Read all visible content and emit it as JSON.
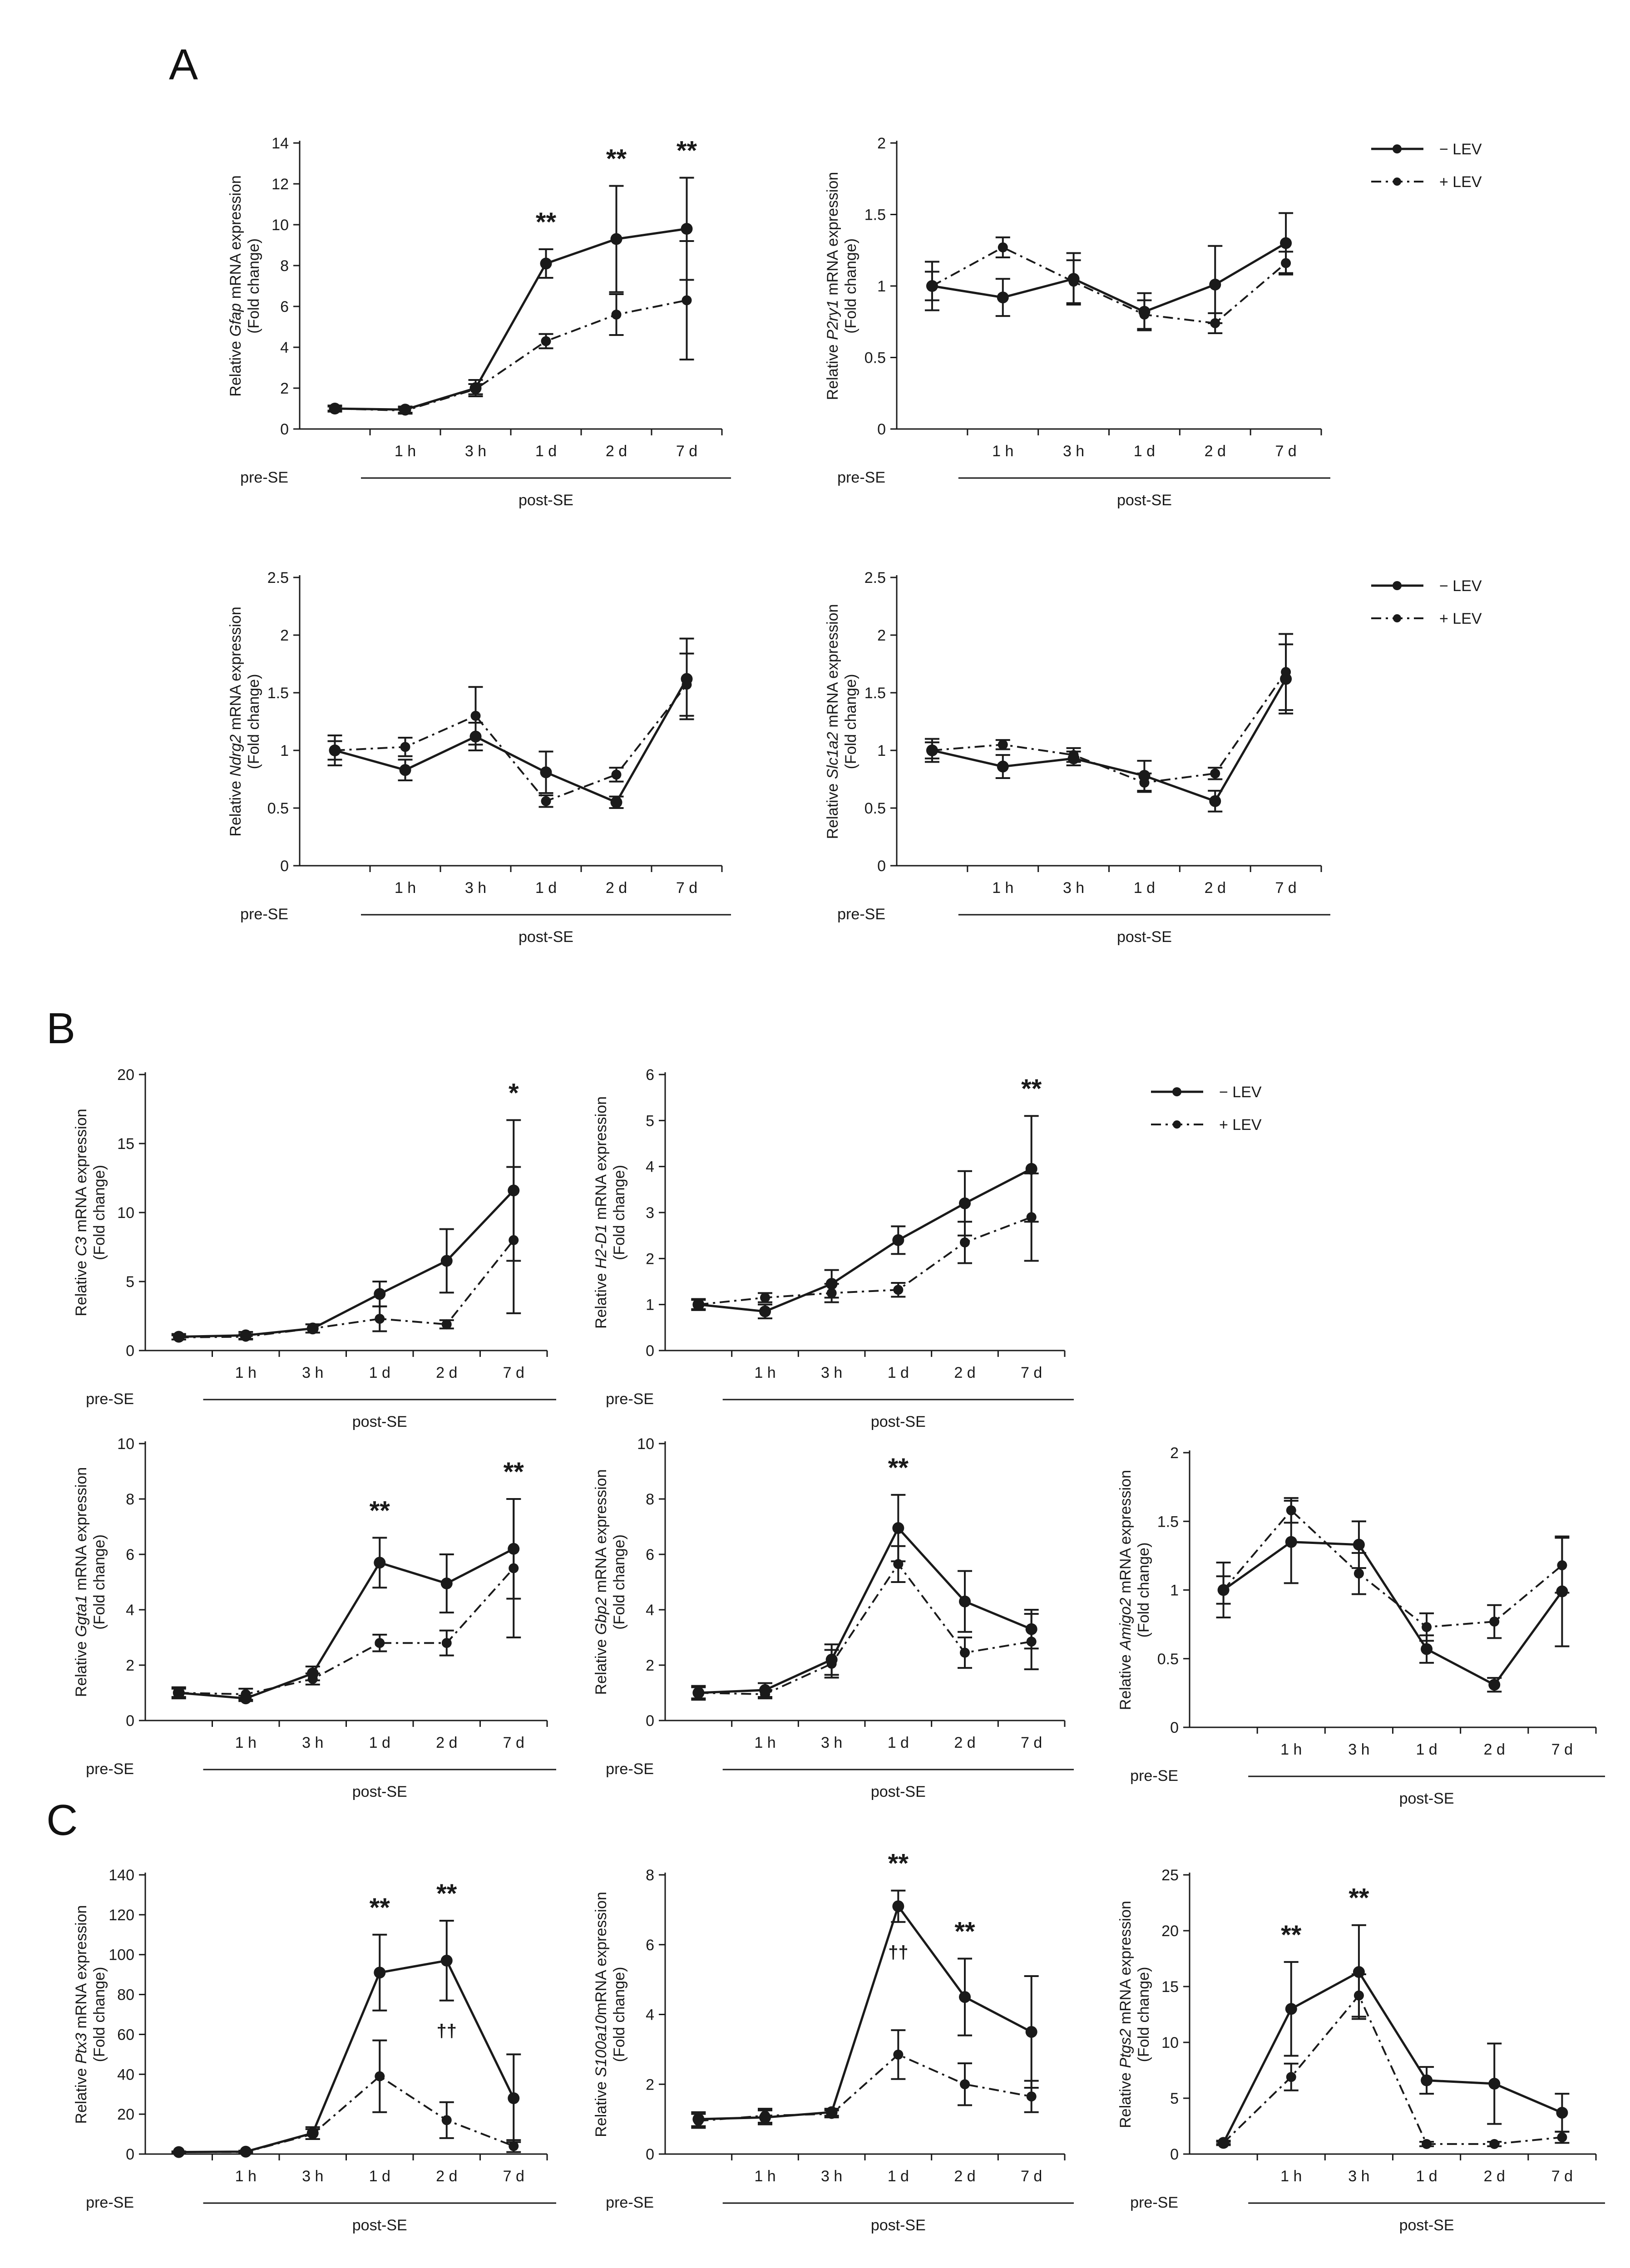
{
  "figure": {
    "panel_labels": [
      "A",
      "B",
      "C"
    ],
    "legend": {
      "minus": "− LEV",
      "plus": "+ LEV"
    },
    "colors": {
      "minus": "#1a1a1a",
      "plus": "#1a1a1a"
    }
  },
  "chart_data": [
    {
      "id": "gfap",
      "panel": "A",
      "type": "line",
      "gene": "Gfap",
      "ylabel_pre": "Relative ",
      "ylabel_post": " mRNA expression",
      "ylabel2": "(Fold change)",
      "categories": [
        "pre-SE",
        "1 h",
        "3 h",
        "1 d",
        "2 d",
        "7 d"
      ],
      "group_label_pre": "pre-SE",
      "group_label_post": "post-SE",
      "ylim": [
        0,
        14
      ],
      "yticks": [
        0,
        2,
        4,
        6,
        8,
        10,
        12,
        14
      ],
      "series": [
        {
          "name": "− LEV",
          "values": [
            1.0,
            0.95,
            2.0,
            8.1,
            9.3,
            9.8
          ],
          "errors": [
            0.15,
            0.15,
            0.4,
            0.7,
            2.6,
            2.5
          ]
        },
        {
          "name": "+ LEV",
          "values": [
            1.0,
            0.9,
            1.95,
            4.3,
            5.6,
            6.3
          ],
          "errors": [
            0.1,
            0.15,
            0.25,
            0.35,
            1.0,
            2.9
          ]
        }
      ],
      "annotations": [
        {
          "index": 3,
          "text": "**"
        },
        {
          "index": 4,
          "text": "**"
        },
        {
          "index": 5,
          "text": "**"
        }
      ]
    },
    {
      "id": "p2ry1",
      "panel": "A",
      "type": "line",
      "gene": "P2ry1",
      "ylabel_pre": "Relative ",
      "ylabel_post": " mRNA expression",
      "ylabel2": "(Fold change)",
      "categories": [
        "pre-SE",
        "1 h",
        "3 h",
        "1 d",
        "2 d",
        "7 d"
      ],
      "group_label_pre": "pre-SE",
      "group_label_post": "post-SE",
      "ylim": [
        0,
        2
      ],
      "yticks": [
        0,
        0.5,
        1,
        1.5,
        2
      ],
      "series": [
        {
          "name": "− LEV",
          "values": [
            1.0,
            0.92,
            1.05,
            0.82,
            1.01,
            1.3
          ],
          "errors": [
            0.17,
            0.13,
            0.18,
            0.13,
            0.27,
            0.21
          ]
        },
        {
          "name": "+ LEV",
          "values": [
            1.0,
            1.27,
            1.03,
            0.8,
            0.74,
            1.16
          ],
          "errors": [
            0.1,
            0.07,
            0.15,
            0.1,
            0.07,
            0.08
          ]
        }
      ],
      "annotations": []
    },
    {
      "id": "ndrg2",
      "panel": "A",
      "type": "line",
      "gene": "Ndrg2",
      "ylabel_pre": "Relative ",
      "ylabel_post": " mRNA expression",
      "ylabel2": "(Fold change)",
      "categories": [
        "pre-SE",
        "1 h",
        "3 h",
        "1 d",
        "2 d",
        "7 d"
      ],
      "group_label_pre": "pre-SE",
      "group_label_post": "post-SE",
      "ylim": [
        0,
        2.5
      ],
      "yticks": [
        0,
        0.5,
        1,
        1.5,
        2,
        2.5
      ],
      "series": [
        {
          "name": "− LEV",
          "values": [
            1.0,
            0.83,
            1.12,
            0.81,
            0.55,
            1.62
          ],
          "errors": [
            0.13,
            0.09,
            0.12,
            0.18,
            0.05,
            0.35
          ]
        },
        {
          "name": "+ LEV",
          "values": [
            1.0,
            1.03,
            1.3,
            0.56,
            0.79,
            1.57
          ],
          "errors": [
            0.08,
            0.08,
            0.25,
            0.05,
            0.06,
            0.27
          ]
        }
      ],
      "annotations": []
    },
    {
      "id": "slc1a2",
      "panel": "A",
      "type": "line",
      "gene": "Slc1a2",
      "ylabel_pre": "Relative ",
      "ylabel_post": " mRNA expression",
      "ylabel2": "(Fold change)",
      "categories": [
        "pre-SE",
        "1 h",
        "3 h",
        "1 d",
        "2 d",
        "7 d"
      ],
      "group_label_pre": "pre-SE",
      "group_label_post": "post-SE",
      "ylim": [
        0,
        2.5
      ],
      "yticks": [
        0,
        0.5,
        1,
        1.5,
        2,
        2.5
      ],
      "series": [
        {
          "name": "− LEV",
          "values": [
            1.0,
            0.86,
            0.93,
            0.78,
            0.56,
            1.62
          ],
          "errors": [
            0.1,
            0.1,
            0.06,
            0.13,
            0.09,
            0.3
          ]
        },
        {
          "name": "+ LEV",
          "values": [
            1.0,
            1.05,
            0.96,
            0.72,
            0.8,
            1.68
          ],
          "errors": [
            0.07,
            0.04,
            0.06,
            0.08,
            0.05,
            0.33
          ]
        }
      ],
      "annotations": []
    },
    {
      "id": "c3",
      "panel": "B",
      "type": "line",
      "gene": "C3",
      "ylabel_pre": "Relative ",
      "ylabel_post": " mRNA expression",
      "ylabel2": "(Fold change)",
      "categories": [
        "pre-SE",
        "1 h",
        "3 h",
        "1 d",
        "2 d",
        "7 d"
      ],
      "group_label_pre": "pre-SE",
      "group_label_post": "post-SE",
      "ylim": [
        0,
        20
      ],
      "yticks": [
        0,
        5,
        10,
        15,
        20
      ],
      "series": [
        {
          "name": "− LEV",
          "values": [
            1.0,
            1.1,
            1.6,
            4.1,
            6.5,
            11.6
          ],
          "errors": [
            0.2,
            0.25,
            0.3,
            0.9,
            2.3,
            5.1
          ]
        },
        {
          "name": "+ LEV",
          "values": [
            0.95,
            1.0,
            1.6,
            2.3,
            1.9,
            8.0
          ],
          "errors": [
            0.15,
            0.2,
            0.3,
            0.9,
            0.3,
            5.3
          ]
        }
      ],
      "annotations": [
        {
          "index": 5,
          "text": "*"
        }
      ]
    },
    {
      "id": "h2d1",
      "panel": "B",
      "type": "line",
      "gene": "H2-D1",
      "ylabel_pre": "Relative ",
      "ylabel_post": " mRNA expression",
      "ylabel2": "(Fold change)",
      "categories": [
        "pre-SE",
        "1 h",
        "3 h",
        "1 d",
        "2 d",
        "7 d"
      ],
      "group_label_pre": "pre-SE",
      "group_label_post": "post-SE",
      "ylim": [
        0,
        6
      ],
      "yticks": [
        0,
        1,
        2,
        3,
        4,
        5,
        6
      ],
      "series": [
        {
          "name": "− LEV",
          "values": [
            1.0,
            0.85,
            1.45,
            2.4,
            3.2,
            3.95
          ],
          "errors": [
            0.12,
            0.15,
            0.3,
            0.3,
            0.7,
            1.15
          ]
        },
        {
          "name": "+ LEV",
          "values": [
            1.0,
            1.15,
            1.25,
            1.32,
            2.35,
            2.9
          ],
          "errors": [
            0.1,
            0.1,
            0.2,
            0.15,
            0.45,
            0.95
          ]
        }
      ],
      "annotations": [
        {
          "index": 5,
          "text": "**"
        }
      ]
    },
    {
      "id": "ggta1",
      "panel": "B",
      "type": "line",
      "gene": "Ggta1",
      "ylabel_pre": "Relative ",
      "ylabel_post": " mRNA expression",
      "ylabel2": "(Fold change)",
      "categories": [
        "pre-SE",
        "1 h",
        "3 h",
        "1 d",
        "2 d",
        "7 d"
      ],
      "group_label_pre": "pre-SE",
      "group_label_post": "post-SE",
      "ylim": [
        0,
        10
      ],
      "yticks": [
        0,
        2,
        4,
        6,
        8,
        10
      ],
      "series": [
        {
          "name": "− LEV",
          "values": [
            1.0,
            0.8,
            1.7,
            5.7,
            4.95,
            6.2
          ],
          "errors": [
            0.2,
            0.1,
            0.25,
            0.9,
            1.05,
            1.8
          ]
        },
        {
          "name": "+ LEV",
          "values": [
            1.0,
            0.95,
            1.5,
            2.8,
            2.8,
            5.5
          ],
          "errors": [
            0.15,
            0.2,
            0.2,
            0.3,
            0.45,
            2.5
          ]
        }
      ],
      "annotations": [
        {
          "index": 3,
          "text": "**"
        },
        {
          "index": 5,
          "text": "**"
        }
      ]
    },
    {
      "id": "gbp2",
      "panel": "B",
      "type": "line",
      "gene": "Gbp2",
      "ylabel_pre": "Relative ",
      "ylabel_post": " mRNA expression",
      "ylabel2": "(Fold change)",
      "categories": [
        "pre-SE",
        "1 h",
        "3 h",
        "1 d",
        "2 d",
        "7 d"
      ],
      "group_label_pre": "pre-SE",
      "group_label_post": "post-SE",
      "ylim": [
        0,
        10
      ],
      "yticks": [
        0,
        2,
        4,
        6,
        8,
        10
      ],
      "series": [
        {
          "name": "− LEV",
          "values": [
            1.0,
            1.1,
            2.2,
            6.95,
            4.3,
            3.3
          ],
          "errors": [
            0.25,
            0.25,
            0.55,
            1.2,
            1.1,
            0.7
          ]
        },
        {
          "name": "+ LEV",
          "values": [
            1.0,
            0.95,
            2.05,
            5.65,
            2.45,
            2.85
          ],
          "errors": [
            0.2,
            0.15,
            0.5,
            0.65,
            0.55,
            1.0
          ]
        }
      ],
      "annotations": [
        {
          "index": 3,
          "text": "**"
        }
      ]
    },
    {
      "id": "amigo2",
      "panel": "B",
      "type": "line",
      "gene": "Amigo2",
      "ylabel_pre": "Relative ",
      "ylabel_post": " mRNA expression",
      "ylabel2": "(Fold change)",
      "categories": [
        "pre-SE",
        "1 h",
        "3 h",
        "1 d",
        "2 d",
        "7 d"
      ],
      "group_label_pre": "pre-SE",
      "group_label_post": "post-SE",
      "ylim": [
        0,
        2
      ],
      "yticks": [
        0,
        0.5,
        1,
        1.5,
        2
      ],
      "series": [
        {
          "name": "− LEV",
          "values": [
            1.0,
            1.35,
            1.33,
            0.57,
            0.31,
            0.99
          ],
          "errors": [
            0.2,
            0.3,
            0.17,
            0.1,
            0.05,
            0.4
          ]
        },
        {
          "name": "+ LEV",
          "values": [
            1.0,
            1.58,
            1.12,
            0.73,
            0.77,
            1.18
          ],
          "errors": [
            0.1,
            0.09,
            0.15,
            0.1,
            0.12,
            0.2
          ]
        }
      ],
      "annotations": []
    },
    {
      "id": "ptx3",
      "panel": "C",
      "type": "line",
      "gene": "Ptx3",
      "ylabel_pre": "Relative ",
      "ylabel_post": " mRNA expression",
      "ylabel2": "(Fold change)",
      "categories": [
        "pre-SE",
        "1 h",
        "3 h",
        "1 d",
        "2 d",
        "7 d"
      ],
      "group_label_pre": "pre-SE",
      "group_label_post": "post-SE",
      "ylim": [
        0,
        140
      ],
      "yticks": [
        0,
        20,
        40,
        60,
        80,
        100,
        120,
        140
      ],
      "series": [
        {
          "name": "− LEV",
          "values": [
            1.0,
            1.2,
            10.5,
            91,
            97,
            28
          ],
          "errors": [
            0.3,
            0.5,
            3.0,
            19,
            20,
            22
          ]
        },
        {
          "name": "+ LEV",
          "values": [
            1.0,
            1.0,
            10.0,
            39,
            17,
            4
          ],
          "errors": [
            0.3,
            0.4,
            2.5,
            18,
            9,
            3
          ]
        }
      ],
      "annotations": [
        {
          "index": 3,
          "text": "**"
        },
        {
          "index": 4,
          "text": "**"
        },
        {
          "index": 4,
          "text": "††",
          "position": "below"
        }
      ]
    },
    {
      "id": "s100a10",
      "panel": "C",
      "type": "line",
      "gene": "S100a10",
      "ylabel_pre": "Relative ",
      "ylabel_post": "mRNA expression",
      "ylabel2": "(Fold change)",
      "categories": [
        "pre-SE",
        "1 h",
        "3 h",
        "1 d",
        "2 d",
        "7 d"
      ],
      "group_label_pre": "pre-SE",
      "group_label_post": "post-SE",
      "ylim": [
        0,
        8
      ],
      "yticks": [
        0,
        2,
        4,
        6,
        8
      ],
      "series": [
        {
          "name": "− LEV",
          "values": [
            1.0,
            1.05,
            1.2,
            7.1,
            4.5,
            3.5
          ],
          "errors": [
            0.2,
            0.2,
            0.1,
            0.45,
            1.1,
            1.6
          ]
        },
        {
          "name": "+ LEV",
          "values": [
            0.95,
            1.1,
            1.15,
            2.85,
            2.0,
            1.65
          ],
          "errors": [
            0.2,
            0.2,
            0.1,
            0.7,
            0.6,
            0.45
          ]
        }
      ],
      "annotations": [
        {
          "index": 3,
          "text": "**"
        },
        {
          "index": 4,
          "text": "**"
        },
        {
          "index": 3,
          "text": "††",
          "position": "below"
        }
      ]
    },
    {
      "id": "ptgs2",
      "panel": "C",
      "type": "line",
      "gene": "Ptgs2",
      "ylabel_pre": "Relative ",
      "ylabel_post": " mRNA expression",
      "ylabel2": "(Fold change)",
      "categories": [
        "pre-SE",
        "1 h",
        "3 h",
        "1 d",
        "2 d",
        "7 d"
      ],
      "group_label_pre": "pre-SE",
      "group_label_post": "post-SE",
      "ylim": [
        0,
        25
      ],
      "yticks": [
        0,
        5,
        10,
        15,
        20,
        25
      ],
      "series": [
        {
          "name": "− LEV",
          "values": [
            1.0,
            13.0,
            16.3,
            6.6,
            6.3,
            3.7
          ],
          "errors": [
            0.2,
            4.2,
            4.2,
            1.2,
            3.6,
            1.7
          ]
        },
        {
          "name": "+ LEV",
          "values": [
            1.0,
            6.9,
            14.2,
            0.9,
            0.9,
            1.5
          ],
          "errors": [
            0.1,
            1.2,
            1.9,
            0.2,
            0.2,
            0.5
          ]
        }
      ],
      "annotations": [
        {
          "index": 1,
          "text": "**"
        },
        {
          "index": 2,
          "text": "**"
        }
      ]
    }
  ]
}
